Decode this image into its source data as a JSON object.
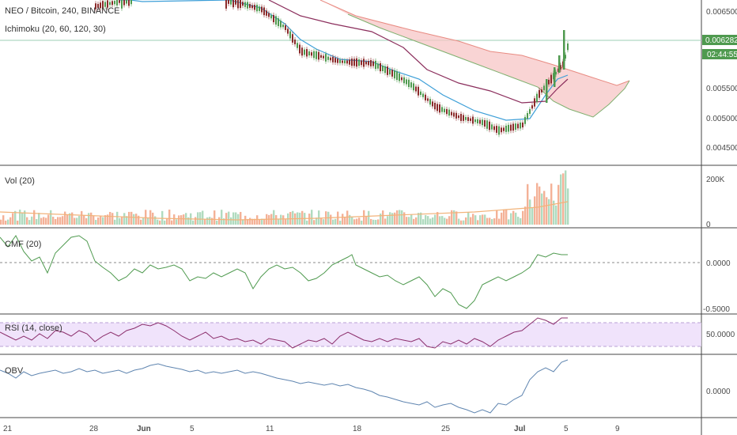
{
  "symbol_title": "NEO / Bitcoin, 240, BINANCE",
  "panes": {
    "price": {
      "indicator_label": "Ichimoku (20, 60, 120, 30)",
      "ticks": [
        "0.006500",
        "0.005500",
        "0.005000",
        "0.004500"
      ],
      "last_price": "0.006282",
      "countdown": "02:44:55"
    },
    "volume": {
      "label": "Vol (20)",
      "ticks": [
        "200K",
        "0"
      ]
    },
    "cmf": {
      "label": "CMF (20)",
      "ticks": [
        "0.0000",
        "-0.5000"
      ]
    },
    "rsi": {
      "label": "RSI (14, close)",
      "ticks": [
        "50.0000"
      ]
    },
    "obv": {
      "label": "OBV",
      "ticks": [
        "0.0000"
      ]
    }
  },
  "time_axis": [
    "21",
    "28",
    "Jun",
    "5",
    "11",
    "18",
    "25",
    "Jul",
    "5",
    "9"
  ],
  "colors": {
    "bull": "#4f9a4f",
    "bear": "#8b2a2a",
    "conversion": "#3d9fd8",
    "base": "#8b2e5c",
    "cloud_fill": "#f7c6c6",
    "span_a": "#7fb06f",
    "span_b": "#e88b82",
    "cmf_line": "#4f9a4f",
    "rsi_line": "#8b2e6c",
    "rsi_band": "#ecdcfa",
    "obv_line": "#5f85b0",
    "last_badge": "#4f9a4f"
  }
}
